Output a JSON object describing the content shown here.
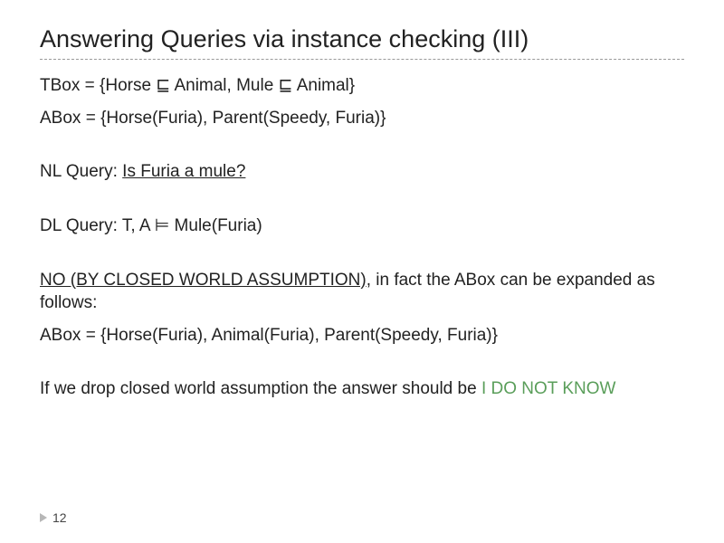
{
  "colors": {
    "text": "#222222",
    "green": "#5a9e5a",
    "rule": "#999999",
    "marker": "#b7b7b7",
    "background": "#ffffff"
  },
  "typography": {
    "title_fontsize": 27,
    "body_fontsize": 19,
    "pagenum_fontsize": 14,
    "font_family": "Arial"
  },
  "title": "Answering Queries via instance checking (III)",
  "tbox": "TBox = {Horse ⊑ Animal, Mule ⊑ Animal}",
  "abox": "ABox = {Horse(Furia), Parent(Speedy, Furia)}",
  "nl_query_label": "NL Query: ",
  "nl_query_text": "Is Furia a mule?",
  "dl_query": "DL Query: T, A ⊨ Mule(Furia)",
  "answer_label": "NO (BY CLOSED WORLD ASSUMPTION)",
  "answer_tail": ", in fact the ABox can be expanded as follows:",
  "abox_expanded": "ABox = {Horse(Furia), Animal(Furia), Parent(Speedy, Furia)}",
  "drop_prefix": "If we drop closed world assumption the answer should be ",
  "drop_answer": "I DO NOT KNOW",
  "page_number": "12"
}
